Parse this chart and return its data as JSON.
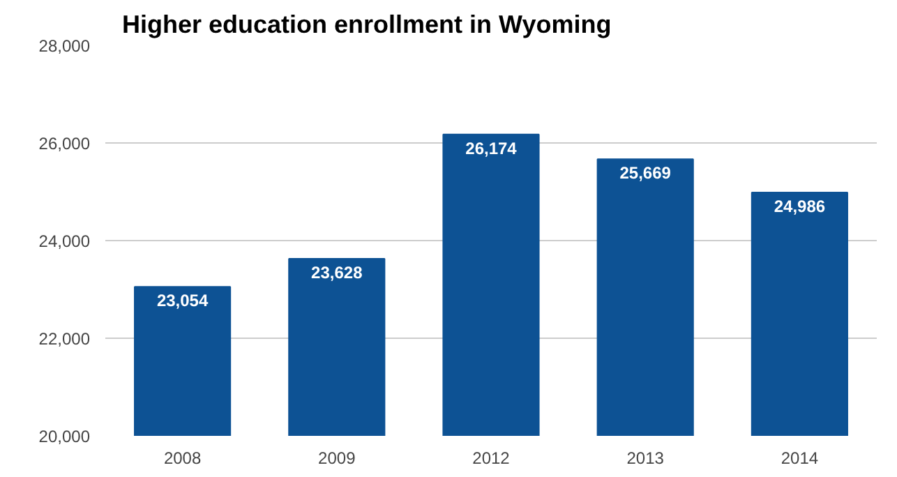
{
  "chart_data": {
    "type": "bar",
    "title": "Higher education enrollment in Wyoming",
    "categories": [
      "2008",
      "2009",
      "2012",
      "2013",
      "2014"
    ],
    "values": [
      23054,
      23628,
      26174,
      25669,
      24986
    ],
    "color": "#0d5294",
    "ylim": [
      20000,
      28000
    ],
    "yticks": [
      {
        "value": 20000,
        "label": "20,000"
      },
      {
        "value": 22000,
        "label": "22,000"
      },
      {
        "value": 24000,
        "label": "24,000"
      },
      {
        "value": 26000,
        "label": "26,000"
      },
      {
        "value": 28000,
        "label": "28,000"
      }
    ],
    "value_labels": [
      "23,054",
      "23,628",
      "26,174",
      "25,669",
      "24,986"
    ],
    "grid": "y"
  }
}
